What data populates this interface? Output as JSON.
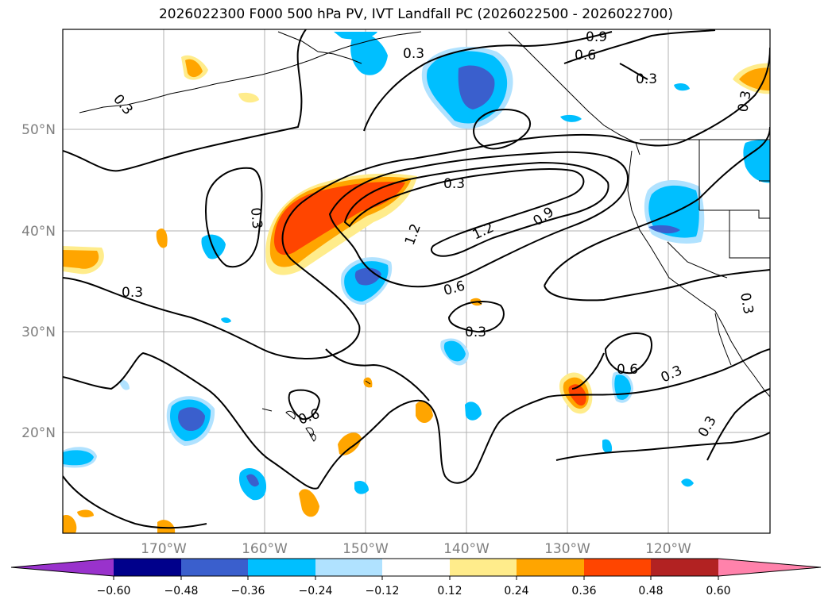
{
  "title": "2026022300 F000 500 hPa PV, IVT Landfall PC (2026022500 - 2026022700)",
  "lat_labels": [
    "50°N",
    "40°N",
    "30°N",
    "20°N"
  ],
  "lon_labels": [
    "170°W",
    "160°W",
    "150°W",
    "140°W",
    "130°W",
    "120°W"
  ],
  "contour_labels": [
    "0.3",
    "0.3",
    "0.9",
    "0.6",
    "0.3",
    "0.3",
    "0.3",
    "0.3",
    "0.3",
    "0.3",
    "1.2",
    "1.2",
    "0.9",
    "0.6",
    "0.3",
    "0.6",
    "0.3",
    "0.6",
    "0.3",
    "0.3"
  ],
  "colorbar": {
    "ticks": [
      "−0.60",
      "−0.48",
      "−0.36",
      "−0.24",
      "−0.12",
      "0.12",
      "0.24",
      "0.36",
      "0.48",
      "0.60"
    ],
    "colors": [
      "#9932cc",
      "#00008b",
      "#3a5fcd",
      "#00bfff",
      "#b0e2ff",
      "#ffffff",
      "#ffec8b",
      "#ffa500",
      "#ff4500",
      "#b22222",
      "#ff82ab"
    ]
  }
}
